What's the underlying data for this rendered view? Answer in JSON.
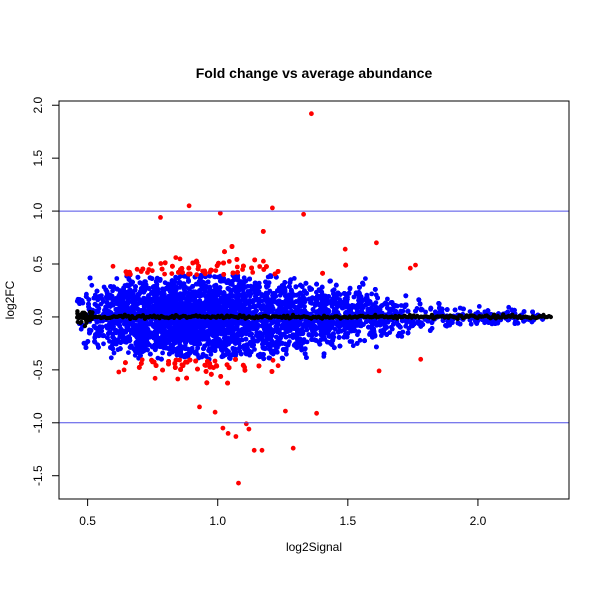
{
  "chart_data": {
    "type": "scatter",
    "title": "Fold change vs average abundance",
    "xlabel": "log2Signal",
    "ylabel": "log2FC",
    "xlim": [
      0.39,
      2.35
    ],
    "ylim": [
      -1.72,
      2.04
    ],
    "xticks": [
      0.5,
      1.0,
      1.5,
      2.0
    ],
    "xtick_labels": [
      "0.5",
      "1.0",
      "1.5",
      "2.0"
    ],
    "yticks": [
      -1.5,
      -1.0,
      -0.5,
      0.0,
      0.5,
      1.0,
      1.5,
      2.0
    ],
    "ytick_labels": [
      "-1.5",
      "-1.0",
      "-0.5",
      "0.0",
      "0.5",
      "1.0",
      "1.5",
      "2.0"
    ],
    "grid": false,
    "hlines": [
      {
        "y": 1.0,
        "color": "#4f4fe6"
      },
      {
        "y": -1.0,
        "color": "#4f4fe6"
      }
    ],
    "colors": {
      "in_band": "#0000ff",
      "outside_band": "#ff0000",
      "trend": "#000000"
    },
    "highlighted_points": [
      {
        "x": 1.36,
        "y": 1.92
      },
      {
        "x": 0.89,
        "y": 1.05
      },
      {
        "x": 1.21,
        "y": 1.03
      },
      {
        "x": 1.01,
        "y": 0.98
      },
      {
        "x": 1.33,
        "y": 0.97
      },
      {
        "x": 0.78,
        "y": 0.94
      },
      {
        "x": 1.61,
        "y": 0.7
      },
      {
        "x": 1.49,
        "y": 0.64
      },
      {
        "x": 1.76,
        "y": 0.49
      },
      {
        "x": 1.74,
        "y": 0.46
      },
      {
        "x": 0.69,
        "y": 0.45
      },
      {
        "x": 0.73,
        "y": 0.42
      },
      {
        "x": 1.02,
        "y": -1.05
      },
      {
        "x": 1.04,
        "y": -1.1
      },
      {
        "x": 1.07,
        "y": -1.13
      },
      {
        "x": 1.11,
        "y": -1.01
      },
      {
        "x": 1.12,
        "y": -1.06
      },
      {
        "x": 1.14,
        "y": -1.26
      },
      {
        "x": 1.17,
        "y": -1.26
      },
      {
        "x": 1.29,
        "y": -1.24
      },
      {
        "x": 1.08,
        "y": -1.57
      },
      {
        "x": 1.38,
        "y": -0.91
      },
      {
        "x": 0.99,
        "y": -0.9
      },
      {
        "x": 1.26,
        "y": -0.89
      },
      {
        "x": 0.93,
        "y": -0.85
      },
      {
        "x": 0.62,
        "y": -0.52
      },
      {
        "x": 0.64,
        "y": -0.5
      },
      {
        "x": 1.62,
        "y": -0.51
      },
      {
        "x": 1.78,
        "y": -0.4
      }
    ]
  }
}
